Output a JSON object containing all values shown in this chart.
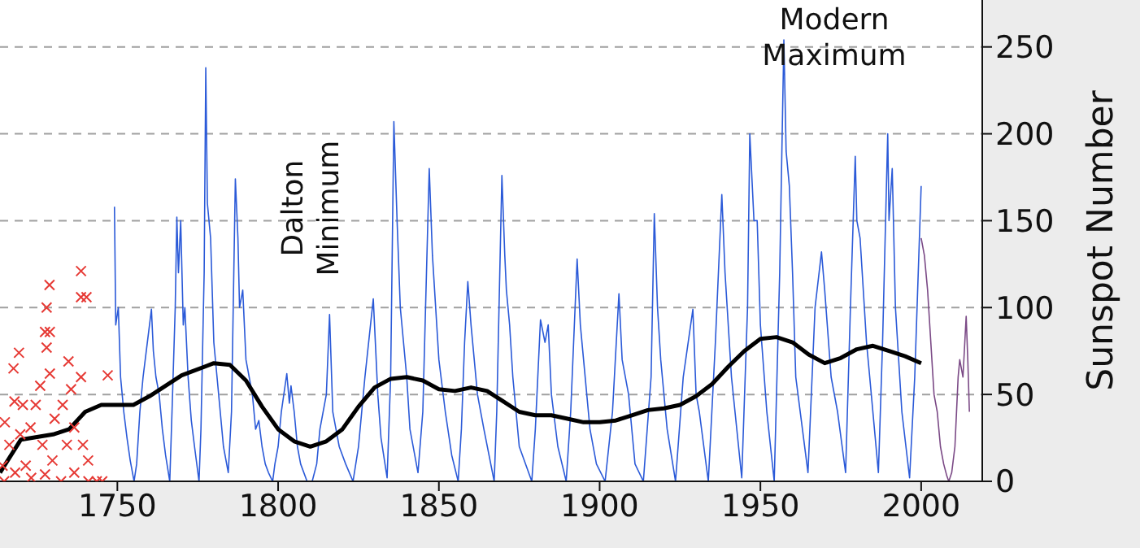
{
  "chart_data": {
    "type": "line",
    "ylabel": "Sunspot Number",
    "xlim": [
      1713.5,
      2019
    ],
    "xticks": [
      1750,
      1800,
      1850,
      1900,
      1950,
      2000
    ],
    "ylim": [
      0,
      277
    ],
    "yticks": [
      0,
      50,
      100,
      150,
      200,
      250
    ],
    "grid": "y",
    "annotations": [
      "Dalton Minimum",
      "Modern Maximum"
    ],
    "series": [
      {
        "type": "scatter",
        "marker": "cross",
        "color": "#e63a35",
        "x": [
          1738.7,
          1738.7,
          1740.4,
          1728.9,
          1728,
          1727.5,
          1729,
          1719.4,
          1717.7,
          1728,
          1734.8,
          1738.7,
          1729,
          1726,
          1735.6,
          1718,
          1720.6,
          1724.6,
          1733,
          1730.5,
          1715,
          1723,
          1736.6,
          1740.9,
          1739.3,
          1719.8,
          1716.4,
          1726.7,
          1734.3,
          1714.3,
          1721.5,
          1729.8,
          1732.5,
          1741,
          1743.6,
          1745.3,
          1747,
          1714.8,
          1718.2,
          1723.2,
          1727.5,
          1736.6
        ],
        "values": [
          121,
          106,
          106,
          113,
          100,
          86,
          86,
          74,
          65,
          77,
          69,
          60,
          62,
          55,
          53,
          46,
          44,
          44,
          44,
          36,
          34,
          31,
          31,
          12,
          21,
          27,
          21,
          21,
          21,
          9,
          9,
          12,
          0,
          0,
          0,
          0,
          61,
          0,
          5,
          2,
          4,
          5
        ]
      },
      {
        "type": "line",
        "color": "#2b5ad8",
        "x": [
          1749.1,
          1749.5,
          1750.3,
          1751,
          1752,
          1753,
          1754,
          1755.2,
          1756,
          1757,
          1758,
          1759,
          1760,
          1760.6,
          1761.2,
          1762,
          1763,
          1764,
          1765,
          1766.3,
          1767,
          1768,
          1768.5,
          1769,
          1769.7,
          1770.5,
          1771,
          1772,
          1773,
          1774,
          1775.4,
          1776,
          1777,
          1777.5,
          1778,
          1779,
          1780,
          1781,
          1782,
          1783,
          1784.5,
          1785.5,
          1786.7,
          1787.5,
          1788,
          1789,
          1790,
          1791,
          1792,
          1793,
          1794,
          1795,
          1796,
          1797,
          1798.3,
          1799,
          1800,
          1801,
          1802.7,
          1803.5,
          1804,
          1805,
          1806,
          1807,
          1809,
          1810.6,
          1812,
          1813,
          1815,
          1816,
          1817,
          1818,
          1819,
          1821,
          1823.3,
          1825,
          1827,
          1829.6,
          1830.5,
          1831,
          1832,
          1833.9,
          1835,
          1836,
          1837,
          1838,
          1839,
          1840,
          1841,
          1843.5,
          1845,
          1847,
          1848,
          1849,
          1850,
          1852,
          1854,
          1856,
          1857,
          1858,
          1859,
          1860,
          1861,
          1862,
          1864,
          1867.2,
          1868,
          1869.6,
          1870.5,
          1871,
          1872,
          1873,
          1875,
          1878.9,
          1880,
          1881.6,
          1883,
          1884,
          1885,
          1887,
          1889.6,
          1891,
          1893,
          1894,
          1895,
          1897,
          1899,
          1901.7,
          1904,
          1906,
          1907,
          1909,
          1911,
          1913.6,
          1916,
          1917,
          1918,
          1919,
          1921,
          1923.6,
          1926,
          1929,
          1930,
          1931,
          1933.8,
          1936,
          1938,
          1939,
          1941,
          1944.2,
          1946,
          1946.7,
          1948,
          1949,
          1950,
          1952,
          1954.3,
          1956,
          1957.3,
          1958,
          1959,
          1960,
          1961,
          1964.8,
          1967,
          1969,
          1970,
          1972,
          1974,
          1976.5,
          1978,
          1979.5,
          1980,
          1981,
          1983,
          1984,
          1986.7,
          1988,
          1989.6,
          1990,
          1991,
          1992,
          1994,
          1996.4,
          1998,
          2000
        ],
        "values": [
          158,
          90,
          100,
          60,
          40,
          25,
          12,
          0,
          10,
          40,
          60,
          75,
          90,
          99,
          75,
          60,
          50,
          30,
          15,
          0,
          40,
          100,
          152,
          120,
          150,
          90,
          100,
          60,
          35,
          20,
          0,
          30,
          120,
          238,
          160,
          140,
          80,
          60,
          40,
          20,
          5,
          40,
          174,
          140,
          100,
          110,
          70,
          60,
          50,
          30,
          35,
          20,
          10,
          5,
          0,
          10,
          20,
          40,
          62,
          45,
          55,
          40,
          20,
          10,
          0,
          0,
          10,
          30,
          50,
          96,
          40,
          30,
          20,
          10,
          0,
          20,
          60,
          105,
          70,
          50,
          25,
          2,
          60,
          207,
          150,
          100,
          80,
          60,
          30,
          5,
          40,
          180,
          130,
          100,
          70,
          40,
          15,
          0,
          30,
          80,
          115,
          90,
          70,
          50,
          30,
          0,
          40,
          176,
          130,
          110,
          90,
          60,
          20,
          0,
          30,
          93,
          80,
          90,
          50,
          20,
          0,
          40,
          128,
          90,
          70,
          30,
          10,
          0,
          40,
          108,
          70,
          50,
          10,
          0,
          60,
          154,
          100,
          70,
          30,
          0,
          60,
          99,
          50,
          40,
          0,
          80,
          165,
          120,
          60,
          2,
          100,
          200,
          150,
          150,
          90,
          40,
          0,
          120,
          254,
          190,
          170,
          120,
          60,
          5,
          100,
          132,
          110,
          60,
          40,
          5,
          100,
          187,
          150,
          140,
          80,
          60,
          5,
          80,
          200,
          150,
          180,
          100,
          40,
          2,
          60,
          170
        ]
      },
      {
        "type": "line",
        "color": "#7b4a86",
        "x": [
          2000,
          2001,
          2002,
          2003,
          2004,
          2005,
          2006,
          2007,
          2008,
          2008.6,
          2009.5,
          2010.5,
          2011.5,
          2012,
          2013,
          2014,
          2014.5,
          2015
        ],
        "values": [
          140,
          130,
          110,
          80,
          50,
          40,
          20,
          10,
          3,
          0,
          5,
          20,
          60,
          70,
          60,
          95,
          70,
          40
        ]
      },
      {
        "type": "line",
        "color": "#000000",
        "x": [
          1713.5,
          1720,
          1730,
          1735,
          1740,
          1745,
          1750,
          1755,
          1760,
          1770,
          1780,
          1785,
          1790,
          1795,
          1800,
          1805,
          1810,
          1815,
          1820,
          1825,
          1830,
          1835,
          1840,
          1845,
          1850,
          1855,
          1860,
          1865,
          1870,
          1875,
          1880,
          1885,
          1890,
          1895,
          1900,
          1905,
          1910,
          1915,
          1920,
          1925,
          1930,
          1935,
          1940,
          1945,
          1950,
          1955,
          1960,
          1965,
          1970,
          1975,
          1980,
          1985,
          1990,
          1995,
          2000
        ],
        "values": [
          5,
          24,
          27,
          30,
          40,
          44,
          44,
          44,
          49,
          61,
          68,
          67,
          58,
          43,
          30,
          23,
          20,
          23,
          30,
          43,
          54,
          59,
          60,
          58,
          53,
          52,
          54,
          52,
          46,
          40,
          38,
          38,
          36,
          34,
          34,
          35,
          38,
          41,
          42,
          44,
          49,
          56,
          66,
          75,
          82,
          83,
          80,
          73,
          68,
          71,
          76,
          78,
          75,
          72,
          68
        ]
      }
    ]
  }
}
